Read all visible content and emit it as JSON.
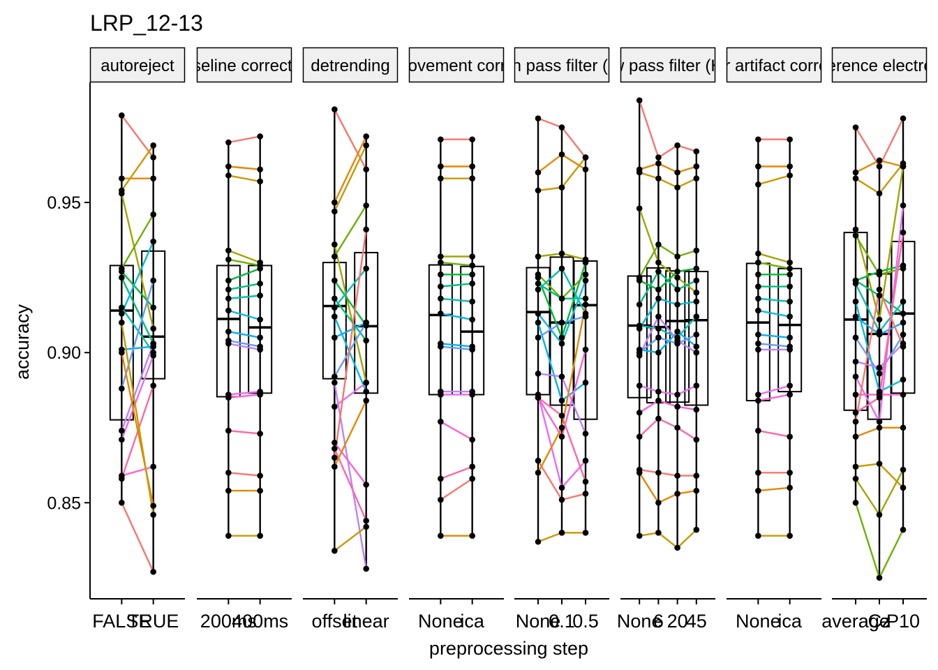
{
  "chart_data": {
    "type": "boxplot",
    "title": "LRP_12-13",
    "xlabel": "preprocessing step",
    "ylabel": "accuracy",
    "ylim": [
      0.818,
      0.99
    ],
    "y_ticks": [
      0.85,
      0.9,
      0.95
    ],
    "y_tick_labels": [
      "0.85",
      "0.90",
      "0.95"
    ],
    "legend": "none",
    "series_colors": [
      "#F8766D",
      "#E58700",
      "#C99800",
      "#A3A500",
      "#6BB100",
      "#00BA38",
      "#00BF7D",
      "#00C0AF",
      "#00BCD8",
      "#00B0F6",
      "#619CFF",
      "#B983FF",
      "#E76BF3",
      "#FD61D1",
      "#FF67A4"
    ],
    "facets": [
      {
        "strip": "autoreject",
        "levels": [
          "FALSE",
          "TRUE"
        ],
        "boxes": [
          [
            0.8776,
            0.914,
            0.929
          ],
          [
            0.8913,
            0.9053,
            0.9338
          ]
        ],
        "pipelines": [
          [
            0.979,
            0.965
          ],
          [
            0.958,
            0.958
          ],
          [
            0.954,
            0.969
          ],
          [
            0.953,
            0.908
          ],
          [
            0.928,
            0.946
          ],
          [
            0.927,
            0.915
          ],
          [
            0.925,
            0.903
          ],
          [
            0.915,
            0.9
          ],
          [
            0.913,
            0.937
          ],
          [
            0.901,
            0.902
          ],
          [
            0.888,
            0.924
          ],
          [
            0.874,
            0.903
          ],
          [
            0.871,
            0.899
          ],
          [
            0.859,
            0.862
          ],
          [
            0.858,
            0.889
          ],
          [
            0.85,
            0.827
          ],
          [
            0.9,
            0.849
          ],
          [
            0.91,
            0.846
          ]
        ]
      },
      {
        "strip": "baseline correction",
        "levels": [
          "200ms",
          "400ms"
        ],
        "boxes": [
          [
            0.8853,
            0.9112,
            0.929
          ],
          [
            0.8865,
            0.9084,
            0.929
          ]
        ],
        "pipelines": [
          [
            0.97,
            0.972
          ],
          [
            0.962,
            0.961
          ],
          [
            0.959,
            0.957
          ],
          [
            0.934,
            0.93
          ],
          [
            0.931,
            0.929
          ],
          [
            0.924,
            0.928
          ],
          [
            0.921,
            0.923
          ],
          [
            0.918,
            0.919
          ],
          [
            0.914,
            0.911
          ],
          [
            0.907,
            0.905
          ],
          [
            0.904,
            0.902
          ],
          [
            0.903,
            0.901
          ],
          [
            0.886,
            0.887
          ],
          [
            0.885,
            0.886
          ],
          [
            0.874,
            0.873
          ],
          [
            0.86,
            0.859
          ],
          [
            0.854,
            0.854
          ],
          [
            0.839,
            0.839
          ]
        ]
      },
      {
        "strip": "detrending",
        "levels": [
          "offset",
          "linear"
        ],
        "boxes": [
          [
            0.8913,
            0.9155,
            0.93
          ],
          [
            0.8865,
            0.9088,
            0.9333
          ]
        ],
        "pipelines": [
          [
            0.981,
            0.961
          ],
          [
            0.95,
            0.972
          ],
          [
            0.947,
            0.969
          ],
          [
            0.936,
            0.89
          ],
          [
            0.932,
            0.949
          ],
          [
            0.924,
            0.909
          ],
          [
            0.918,
            0.904
          ],
          [
            0.915,
            0.928
          ],
          [
            0.912,
            0.887
          ],
          [
            0.905,
            0.91
          ],
          [
            0.892,
            0.91
          ],
          [
            0.89,
            0.828
          ],
          [
            0.882,
            0.89
          ],
          [
            0.87,
            0.856
          ],
          [
            0.868,
            0.844
          ],
          [
            0.865,
            0.941
          ],
          [
            0.862,
            0.884
          ],
          [
            0.834,
            0.842
          ]
        ]
      },
      {
        "strip": "eye movement correction",
        "levels": [
          "None",
          "ica"
        ],
        "boxes": [
          [
            0.886,
            0.9125,
            0.9292
          ],
          [
            0.886,
            0.907,
            0.9287
          ]
        ],
        "pipelines": [
          [
            0.971,
            0.971
          ],
          [
            0.962,
            0.962
          ],
          [
            0.958,
            0.958
          ],
          [
            0.932,
            0.932
          ],
          [
            0.93,
            0.929
          ],
          [
            0.926,
            0.926
          ],
          [
            0.922,
            0.923
          ],
          [
            0.918,
            0.917
          ],
          [
            0.913,
            0.911
          ],
          [
            0.903,
            0.902
          ],
          [
            0.902,
            0.901
          ],
          [
            0.887,
            0.887
          ],
          [
            0.886,
            0.886
          ],
          [
            0.877,
            0.871
          ],
          [
            0.858,
            0.862
          ],
          [
            0.851,
            0.858
          ],
          [
            0.839,
            0.839
          ]
        ]
      },
      {
        "strip": "high pass filter (Hz)",
        "levels": [
          "None",
          "0.1",
          "0.5"
        ],
        "boxes": [
          [
            0.886,
            0.9135,
            0.9283
          ],
          [
            0.8825,
            0.91,
            0.9318
          ],
          [
            0.8778,
            0.9158,
            0.9305
          ]
        ],
        "pipelines": [
          [
            0.978,
            0.975,
            0.965
          ],
          [
            0.96,
            0.966,
            0.961
          ],
          [
            0.954,
            0.955,
            0.965
          ],
          [
            0.932,
            0.933,
            0.931
          ],
          [
            0.926,
            0.918,
            0.926
          ],
          [
            0.925,
            0.905,
            0.93
          ],
          [
            0.923,
            0.918,
            0.918
          ],
          [
            0.921,
            0.928,
            0.913
          ],
          [
            0.913,
            0.903,
            0.924
          ],
          [
            0.91,
            0.884,
            0.89
          ],
          [
            0.905,
            0.91,
            0.912
          ],
          [
            0.893,
            0.892,
            0.873
          ],
          [
            0.886,
            0.855,
            0.864
          ],
          [
            0.885,
            0.872,
            0.901
          ],
          [
            0.885,
            0.879,
            0.857
          ],
          [
            0.864,
            0.851,
            0.853
          ],
          [
            0.86,
            0.875,
            0.916
          ],
          [
            0.837,
            0.84,
            0.84
          ]
        ]
      },
      {
        "strip": "low pass filter (Hz)",
        "levels": [
          "None",
          "6",
          "20",
          "45"
        ],
        "boxes": [
          [
            0.885,
            0.909,
            0.9255
          ],
          [
            0.8833,
            0.9085,
            0.9282
          ],
          [
            0.8835,
            0.9105,
            0.9272
          ],
          [
            0.8825,
            0.9108,
            0.927
          ]
        ],
        "pipelines": [
          [
            0.984,
            0.965,
            0.969,
            0.967
          ],
          [
            0.961,
            0.963,
            0.96,
            0.962
          ],
          [
            0.96,
            0.958,
            0.955,
            0.958
          ],
          [
            0.948,
            0.93,
            0.925,
            0.92
          ],
          [
            0.925,
            0.936,
            0.932,
            0.934
          ],
          [
            0.924,
            0.921,
            0.927,
            0.928
          ],
          [
            0.916,
            0.927,
            0.921,
            0.924
          ],
          [
            0.909,
            0.908,
            0.905,
            0.912
          ],
          [
            0.908,
            0.918,
            0.916,
            0.917
          ],
          [
            0.901,
            0.9,
            0.907,
            0.902
          ],
          [
            0.9,
            0.905,
            0.903,
            0.906
          ],
          [
            0.899,
            0.912,
            0.904,
            0.9
          ],
          [
            0.889,
            0.887,
            0.886,
            0.889
          ],
          [
            0.88,
            0.884,
            0.882,
            0.881
          ],
          [
            0.872,
            0.878,
            0.875,
            0.871
          ],
          [
            0.861,
            0.86,
            0.859,
            0.859
          ],
          [
            0.86,
            0.85,
            0.853,
            0.854
          ],
          [
            0.839,
            0.84,
            0.835,
            0.841
          ]
        ]
      },
      {
        "strip": "ocular artifact correction",
        "levels": [
          "None",
          "ica"
        ],
        "boxes": [
          [
            0.884,
            0.91,
            0.9297
          ],
          [
            0.887,
            0.9092,
            0.928
          ]
        ],
        "pipelines": [
          [
            0.971,
            0.971
          ],
          [
            0.962,
            0.962
          ],
          [
            0.956,
            0.959
          ],
          [
            0.933,
            0.93
          ],
          [
            0.93,
            0.928
          ],
          [
            0.926,
            0.926
          ],
          [
            0.922,
            0.922
          ],
          [
            0.918,
            0.917
          ],
          [
            0.914,
            0.912
          ],
          [
            0.906,
            0.905
          ],
          [
            0.903,
            0.902
          ],
          [
            0.901,
            0.901
          ],
          [
            0.886,
            0.889
          ],
          [
            0.884,
            0.886
          ],
          [
            0.874,
            0.872
          ],
          [
            0.86,
            0.86
          ],
          [
            0.854,
            0.855
          ],
          [
            0.839,
            0.839
          ]
        ]
      },
      {
        "strip": "reference electrode",
        "levels": [
          "average",
          "Cz",
          "P10"
        ],
        "boxes": [
          [
            0.8808,
            0.911,
            0.94
          ],
          [
            0.8778,
            0.9062,
            0.9262
          ],
          [
            0.8865,
            0.913,
            0.937
          ]
        ],
        "pipelines": [
          [
            0.975,
            0.962,
            0.978
          ],
          [
            0.96,
            0.964,
            0.962
          ],
          [
            0.958,
            0.953,
            0.963
          ],
          [
            0.941,
            0.911,
            0.962
          ],
          [
            0.939,
            0.926,
            0.928
          ],
          [
            0.924,
            0.927,
            0.929
          ],
          [
            0.924,
            0.919,
            0.913
          ],
          [
            0.923,
            0.907,
            0.917
          ],
          [
            0.917,
            0.887,
            0.891
          ],
          [
            0.912,
            0.906,
            0.91
          ],
          [
            0.905,
            0.893,
            0.906
          ],
          [
            0.897,
            0.895,
            0.903
          ],
          [
            0.892,
            0.877,
            0.949
          ],
          [
            0.886,
            0.886,
            0.886
          ],
          [
            0.88,
            0.885,
            0.94
          ],
          [
            0.877,
            0.921,
            0.902
          ],
          [
            0.872,
            0.875,
            0.875
          ],
          [
            0.862,
            0.863,
            0.855
          ],
          [
            0.858,
            0.846,
            0.861
          ],
          [
            0.85,
            0.825,
            0.841
          ]
        ]
      }
    ]
  }
}
